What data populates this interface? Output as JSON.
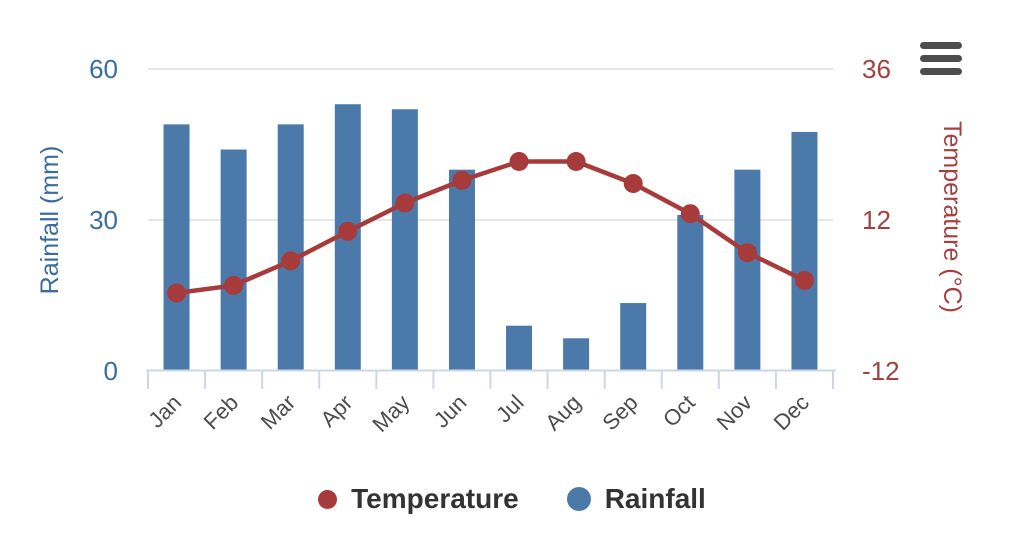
{
  "chart_data": {
    "type": "combo",
    "categories": [
      "Jan",
      "Feb",
      "Mar",
      "Apr",
      "May",
      "Jun",
      "Jul",
      "Aug",
      "Sep",
      "Oct",
      "Nov",
      "Dec"
    ],
    "series": [
      {
        "name": "Rainfall",
        "type": "bar",
        "axis": "left",
        "color": "#4a79aa",
        "values": [
          49,
          44,
          49,
          53,
          52,
          40,
          9,
          6.5,
          13.5,
          31,
          40,
          47.5
        ]
      },
      {
        "name": "Temperature",
        "type": "line",
        "axis": "right",
        "color": "#a73b3b",
        "values": [
          0.4,
          1.6,
          5.5,
          10.2,
          14.7,
          18.3,
          21.3,
          21.3,
          17.8,
          13,
          6.8,
          2.4
        ]
      }
    ],
    "left_axis": {
      "title": "Rainfall (mm)",
      "min": 0,
      "max": 60,
      "ticks": [
        0,
        30,
        60
      ],
      "color": "#3a6d9e"
    },
    "right_axis": {
      "title": "Temperature (°C)",
      "min": -12,
      "max": 36,
      "ticks": [
        -12,
        12,
        36
      ],
      "color": "#a54040"
    },
    "legend_position": "bottom",
    "grid": true,
    "legend": [
      {
        "label": "Temperature",
        "color": "#a73b3b"
      },
      {
        "label": "Rainfall",
        "color": "#4a79aa"
      }
    ],
    "style": {
      "gridline_color": "#e6e6e6",
      "axisline_color": "#ccd6eb",
      "xlabel_color": "#4c4c4c",
      "legend_text_color": "#333333"
    }
  },
  "controls": {
    "menu_icon": "hamburger-menu-icon"
  }
}
